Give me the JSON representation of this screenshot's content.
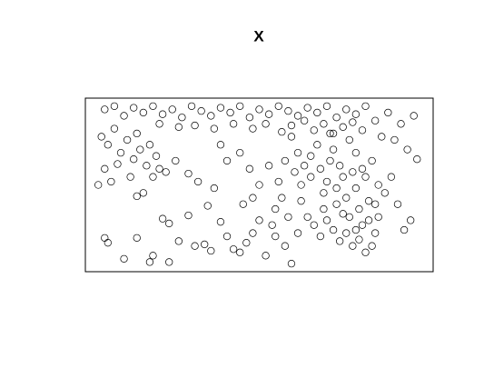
{
  "chart_data": {
    "type": "scatter",
    "title": "X",
    "color": "#000000",
    "xlim": [
      0,
      1
    ],
    "ylim": [
      0,
      1
    ],
    "x": [
      0.02,
      0.05,
      0.08,
      0.11,
      0.14,
      0.17,
      0.2,
      0.23,
      0.26,
      0.29,
      0.32,
      0.35,
      0.38,
      0.41,
      0.44,
      0.47,
      0.5,
      0.53,
      0.56,
      0.59,
      0.62,
      0.65,
      0.68,
      0.71,
      0.74,
      0.77,
      0.8,
      0.83,
      0.86,
      0.9,
      0.94,
      0.98,
      0.48,
      0.52,
      0.57,
      0.6,
      0.64,
      0.67,
      0.7,
      0.73,
      0.76,
      0.79,
      0.82,
      0.88,
      0.92,
      0.96,
      0.99,
      0.3,
      0.36,
      0.42,
      0.25,
      0.19,
      0.01,
      0.03,
      0.05,
      0.07,
      0.02,
      0.04,
      0.09,
      0.11,
      0.13,
      0.15,
      0.1,
      0.06,
      0.0,
      0.12,
      0.16,
      0.18,
      0.14,
      0.12,
      0.17,
      0.21,
      0.24,
      0.19,
      0.02,
      0.03,
      0.08,
      0.12,
      0.16,
      0.17,
      0.22,
      0.2,
      0.22,
      0.25,
      0.28,
      0.3,
      0.33,
      0.35,
      0.34,
      0.28,
      0.31,
      0.36,
      0.38,
      0.4,
      0.42,
      0.44,
      0.46,
      0.48,
      0.5,
      0.52,
      0.55,
      0.48,
      0.45,
      0.5,
      0.55,
      0.58,
      0.6,
      0.62,
      0.4,
      0.44,
      0.38,
      0.47,
      0.53,
      0.6,
      0.62,
      0.64,
      0.66,
      0.68,
      0.7,
      0.72,
      0.74,
      0.76,
      0.78,
      0.8,
      0.82,
      0.84,
      0.86,
      0.63,
      0.65,
      0.67,
      0.69,
      0.71,
      0.73,
      0.75,
      0.77,
      0.79,
      0.81,
      0.83,
      0.85,
      0.87,
      0.89,
      0.91,
      0.93,
      0.95,
      0.97,
      0.61,
      0.63,
      0.66,
      0.69,
      0.71,
      0.73,
      0.75,
      0.77,
      0.79,
      0.81,
      0.83,
      0.85,
      0.87,
      0.8,
      0.78,
      0.72,
      0.58,
      0.56,
      0.57,
      0.59,
      0.54,
      0.82,
      0.84,
      0.86,
      0.8,
      0.76,
      0.7,
      0.74
    ],
    "values": [
      0.97,
      0.99,
      0.93,
      0.98,
      0.95,
      0.99,
      0.94,
      0.97,
      0.92,
      0.99,
      0.96,
      0.93,
      0.98,
      0.95,
      0.99,
      0.92,
      0.97,
      0.94,
      0.99,
      0.96,
      0.93,
      0.98,
      0.95,
      0.99,
      0.92,
      0.97,
      0.94,
      0.99,
      0.9,
      0.95,
      0.88,
      0.93,
      0.85,
      0.88,
      0.83,
      0.87,
      0.9,
      0.84,
      0.88,
      0.82,
      0.86,
      0.89,
      0.84,
      0.8,
      0.78,
      0.72,
      0.66,
      0.87,
      0.85,
      0.88,
      0.86,
      0.88,
      0.8,
      0.75,
      0.85,
      0.7,
      0.6,
      0.52,
      0.78,
      0.66,
      0.72,
      0.62,
      0.55,
      0.63,
      0.5,
      0.82,
      0.75,
      0.68,
      0.45,
      0.43,
      0.55,
      0.58,
      0.65,
      0.6,
      0.17,
      0.14,
      0.04,
      0.17,
      0.02,
      0.06,
      0.02,
      0.29,
      0.26,
      0.15,
      0.31,
      0.12,
      0.13,
      0.09,
      0.37,
      0.57,
      0.52,
      0.48,
      0.27,
      0.18,
      0.1,
      0.08,
      0.14,
      0.2,
      0.28,
      0.06,
      0.18,
      0.42,
      0.38,
      0.5,
      0.35,
      0.12,
      0.01,
      0.2,
      0.65,
      0.7,
      0.75,
      0.6,
      0.62,
      0.8,
      0.7,
      0.62,
      0.55,
      0.75,
      0.45,
      0.65,
      0.38,
      0.55,
      0.3,
      0.48,
      0.25,
      0.4,
      0.2,
      0.4,
      0.3,
      0.25,
      0.18,
      0.28,
      0.22,
      0.15,
      0.2,
      0.12,
      0.16,
      0.08,
      0.12,
      0.3,
      0.45,
      0.55,
      0.38,
      0.22,
      0.28,
      0.58,
      0.5,
      0.68,
      0.6,
      0.52,
      0.72,
      0.62,
      0.42,
      0.58,
      0.35,
      0.55,
      0.65,
      0.5,
      0.7,
      0.78,
      0.82,
      0.65,
      0.52,
      0.42,
      0.3,
      0.25,
      0.6,
      0.28,
      0.38,
      0.22,
      0.32,
      0.35,
      0.48
    ]
  }
}
